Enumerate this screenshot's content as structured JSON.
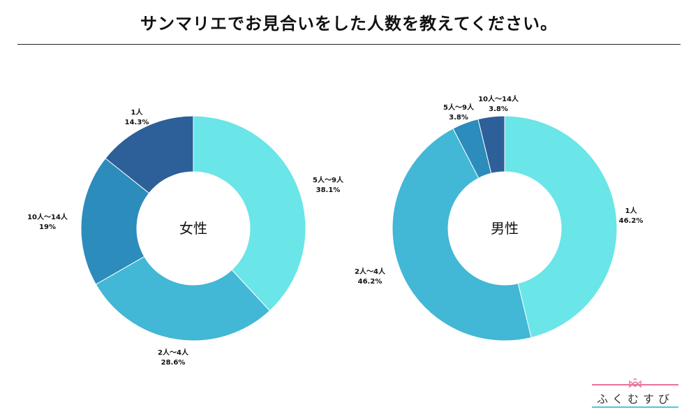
{
  "title": "サンマリエでお見合いをした人数を教えてください。",
  "logo": {
    "text": "ふくむすび",
    "top_line_color": "#e9739f",
    "bottom_line_color": "#4cc9d6",
    "knot_color": "#e9739f"
  },
  "chart_data": [
    {
      "type": "pie",
      "variant": "donut",
      "center_label": "女性",
      "slices": [
        {
          "label": "5人～9人",
          "value": 38.1,
          "value_label": "38.1%",
          "color": "#6ae5e8"
        },
        {
          "label": "2人～4人",
          "value": 28.6,
          "value_label": "28.6%",
          "color": "#42b7d6"
        },
        {
          "label": "10人～14人",
          "value": 19,
          "value_label": "19%",
          "color": "#2c8cbc"
        },
        {
          "label": "1人",
          "value": 14.3,
          "value_label": "14.3%",
          "color": "#2d5f98"
        }
      ]
    },
    {
      "type": "pie",
      "variant": "donut",
      "center_label": "男性",
      "slices": [
        {
          "label": "1人",
          "value": 46.2,
          "value_label": "46.2%",
          "color": "#6ae5e8"
        },
        {
          "label": "2人～4人",
          "value": 46.2,
          "value_label": "46.2%",
          "color": "#42b7d6"
        },
        {
          "label": "5人～9人",
          "value": 3.8,
          "value_label": "3.8%",
          "color": "#2c8cbc"
        },
        {
          "label": "10人～14人",
          "value": 3.8,
          "value_label": "3.8%",
          "color": "#2d5f98"
        }
      ]
    }
  ]
}
